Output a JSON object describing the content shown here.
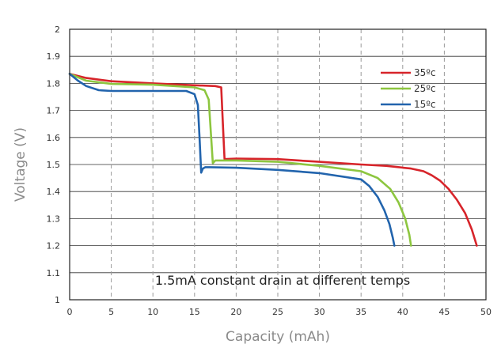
{
  "chart_data": {
    "type": "line",
    "title": "",
    "xlabel": "Capacity (mAh)",
    "ylabel": "Voltage (V)",
    "xlim": [
      0,
      50
    ],
    "ylim": [
      1,
      2
    ],
    "xticks": [
      0,
      5,
      10,
      15,
      20,
      25,
      30,
      35,
      40,
      45,
      50
    ],
    "yticks": [
      1,
      1.1,
      1.2,
      1.3,
      1.4,
      1.5,
      1.6,
      1.7,
      1.8,
      1.9,
      2
    ],
    "grid": "vertical-dashed",
    "legend_position": "top-right",
    "annotation": "1.5mA constant drain at different temps",
    "series": [
      {
        "name": "35ºc",
        "color": "#d7242a",
        "x": [
          0,
          2,
          5,
          10,
          15,
          17.5,
          18.2,
          18.4,
          18.6,
          20,
          25,
          30,
          35,
          38,
          41,
          42.5,
          43.5,
          44.5,
          45.5,
          46.5,
          47.5,
          48.3,
          48.9
        ],
        "y": [
          1.835,
          1.82,
          1.808,
          1.8,
          1.793,
          1.79,
          1.785,
          1.65,
          1.52,
          1.522,
          1.52,
          1.51,
          1.5,
          1.495,
          1.485,
          1.475,
          1.46,
          1.44,
          1.41,
          1.37,
          1.32,
          1.26,
          1.2
        ]
      },
      {
        "name": "25ºc",
        "color": "#8dc63f",
        "x": [
          0,
          2,
          5,
          10,
          15,
          16.2,
          16.7,
          17,
          17.2,
          17.5,
          20,
          25,
          30,
          35,
          37,
          38.5,
          39.5,
          40.3,
          40.8,
          41
        ],
        "y": [
          1.835,
          1.81,
          1.798,
          1.795,
          1.785,
          1.775,
          1.74,
          1.6,
          1.505,
          1.515,
          1.515,
          1.51,
          1.495,
          1.475,
          1.45,
          1.41,
          1.36,
          1.3,
          1.24,
          1.2
        ]
      },
      {
        "name": "15ºc",
        "color": "#2264ad",
        "x": [
          0,
          1,
          2,
          3.5,
          5,
          10,
          14,
          15,
          15.4,
          15.6,
          15.8,
          16,
          16.3,
          16.8,
          20,
          25,
          30,
          35,
          36,
          37,
          37.8,
          38.4,
          38.8,
          39
        ],
        "y": [
          1.835,
          1.81,
          1.79,
          1.775,
          1.772,
          1.772,
          1.772,
          1.76,
          1.72,
          1.6,
          1.47,
          1.485,
          1.49,
          1.49,
          1.488,
          1.48,
          1.468,
          1.445,
          1.42,
          1.38,
          1.33,
          1.28,
          1.23,
          1.2
        ]
      }
    ]
  }
}
